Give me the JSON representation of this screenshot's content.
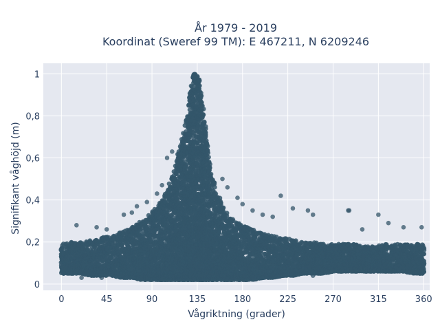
{
  "chart_data": {
    "type": "scatter",
    "title_line1": "År 1979 - 2019",
    "title_line2": "Koordinat (Sweref 99 TM): E 467211, N 6209246",
    "xlabel": "Vågriktning (grader)",
    "ylabel": "Signifikant våghöjd (m)",
    "xlim": [
      -18,
      366
    ],
    "ylim": [
      -0.03,
      1.05
    ],
    "xticks": [
      0,
      45,
      90,
      135,
      180,
      225,
      270,
      315,
      360
    ],
    "xtick_labels": [
      "0",
      "45",
      "90",
      "135",
      "180",
      "225",
      "270",
      "315",
      "360"
    ],
    "yticks": [
      0,
      0.2,
      0.4,
      0.6,
      0.8,
      1
    ],
    "ytick_labels": [
      "0",
      "0,2",
      "0,4",
      "0,6",
      "0,8",
      "1"
    ],
    "grid": true,
    "marker_color": "#34566a",
    "background": "#e5e8f0",
    "envelope": {
      "x": [
        0,
        10,
        20,
        30,
        40,
        50,
        60,
        70,
        80,
        90,
        100,
        105,
        110,
        115,
        120,
        125,
        128,
        131,
        134,
        137,
        140,
        143,
        146,
        150,
        155,
        160,
        165,
        170,
        180,
        190,
        200,
        210,
        220,
        230,
        240,
        250,
        260,
        270,
        280,
        290,
        300,
        310,
        320,
        330,
        340,
        350,
        360
      ],
      "ymin": [
        0.05,
        0.05,
        0.05,
        0.04,
        0.04,
        0.04,
        0.03,
        0.03,
        0.02,
        0.02,
        0.02,
        0.02,
        0.02,
        0.02,
        0.02,
        0.02,
        0.02,
        0.02,
        0.02,
        0.02,
        0.02,
        0.02,
        0.02,
        0.02,
        0.02,
        0.02,
        0.02,
        0.02,
        0.02,
        0.02,
        0.03,
        0.03,
        0.04,
        0.04,
        0.05,
        0.05,
        0.05,
        0.06,
        0.06,
        0.06,
        0.06,
        0.06,
        0.06,
        0.06,
        0.06,
        0.05,
        0.05
      ],
      "ymax": [
        0.19,
        0.2,
        0.2,
        0.21,
        0.22,
        0.23,
        0.25,
        0.27,
        0.3,
        0.34,
        0.4,
        0.45,
        0.52,
        0.6,
        0.7,
        0.82,
        0.93,
        1.0,
        1.0,
        0.98,
        0.88,
        0.75,
        0.63,
        0.52,
        0.43,
        0.38,
        0.34,
        0.31,
        0.28,
        0.26,
        0.24,
        0.23,
        0.22,
        0.21,
        0.2,
        0.2,
        0.19,
        0.19,
        0.19,
        0.19,
        0.18,
        0.18,
        0.19,
        0.19,
        0.19,
        0.19,
        0.19
      ]
    },
    "outliers": [
      [
        15,
        0.28
      ],
      [
        35,
        0.27
      ],
      [
        45,
        0.26
      ],
      [
        62,
        0.33
      ],
      [
        70,
        0.34
      ],
      [
        75,
        0.37
      ],
      [
        85,
        0.39
      ],
      [
        95,
        0.43
      ],
      [
        100,
        0.47
      ],
      [
        105,
        0.6
      ],
      [
        110,
        0.63
      ],
      [
        160,
        0.5
      ],
      [
        165,
        0.46
      ],
      [
        175,
        0.41
      ],
      [
        180,
        0.38
      ],
      [
        190,
        0.35
      ],
      [
        200,
        0.33
      ],
      [
        210,
        0.32
      ],
      [
        218,
        0.42
      ],
      [
        230,
        0.36
      ],
      [
        245,
        0.35
      ],
      [
        250,
        0.33
      ],
      [
        285,
        0.35
      ],
      [
        286,
        0.35
      ],
      [
        299,
        0.26
      ],
      [
        315,
        0.33
      ],
      [
        325,
        0.29
      ],
      [
        340,
        0.27
      ],
      [
        358,
        0.27
      ],
      [
        300,
        0.13
      ],
      [
        330,
        0.12
      ],
      [
        20,
        0.03
      ],
      [
        40,
        0.03
      ],
      [
        250,
        0.04
      ]
    ]
  }
}
